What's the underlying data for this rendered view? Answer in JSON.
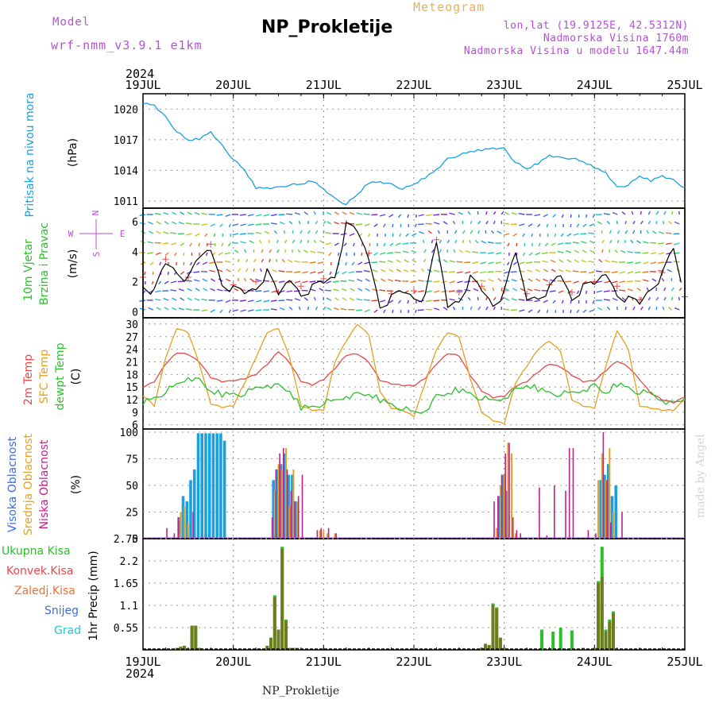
{
  "header": {
    "model_label": "Model",
    "model_name": "wrf-nmm_v3.9.1 e1km",
    "title": "NP_Prokletije",
    "subtitle": "Meteogram",
    "coords": "lon,lat (19.9125E, 42.5312N)",
    "elevation": "Nadmorska Visina 1760m",
    "elevation_model": "Nadmorska Visina u modelu 1647.44m",
    "footer": "NP_Prokletije",
    "credit": "made by Angel"
  },
  "colors": {
    "purple": "#b44fd8",
    "pressure": "#1a9fe0",
    "red": "#e84848",
    "orange": "#e6a020",
    "green": "#2bc02b",
    "blue": "#3a6ee0",
    "magenta": "#c0208a",
    "olive": "#6b7e1c",
    "cyan": "#23c8c8"
  },
  "time_axis": {
    "year": "2024",
    "days": [
      "19JUL",
      "20JUL",
      "21JUL",
      "22JUL",
      "23JUL",
      "24JUL",
      "25JUL"
    ]
  },
  "chart_data": [
    {
      "type": "line",
      "panel": "pressure",
      "ylabel_lines": [
        "Pritisak na nivou mora",
        "(hPa)"
      ],
      "unit": "hPa",
      "y_ticks": [
        "1011",
        "1014",
        "1017",
        "1020"
      ],
      "ylim": [
        1010.3,
        1021.5
      ],
      "x_hours": [
        0,
        3,
        6,
        9,
        12,
        15,
        18,
        21,
        24,
        27,
        30,
        33,
        36,
        39,
        42,
        45,
        48,
        51,
        54,
        57,
        60,
        63,
        66,
        69,
        72,
        75,
        78,
        81,
        84,
        87,
        90,
        93,
        96,
        99,
        102,
        105,
        108,
        111,
        114,
        117,
        120,
        123,
        126,
        129,
        132,
        135,
        138,
        141,
        144
      ],
      "values": [
        1020.6,
        1020.4,
        1019.2,
        1017.8,
        1016.9,
        1017.1,
        1017.8,
        1016.4,
        1015.1,
        1014.0,
        1012.3,
        1012.3,
        1012.3,
        1012.6,
        1012.6,
        1013.0,
        1012.2,
        1011.2,
        1010.7,
        1011.6,
        1012.8,
        1012.9,
        1012.6,
        1012.2,
        1012.6,
        1013.3,
        1014.1,
        1015.1,
        1015.5,
        1015.8,
        1016.0,
        1016.2,
        1016.1,
        1014.8,
        1014.1,
        1014.7,
        1015.5,
        1015.2,
        1015.2,
        1014.8,
        1014.3,
        1013.8,
        1012.3,
        1012.6,
        1013.4,
        1013.0,
        1013.5,
        1013.0,
        1012.3
      ],
      "series": [
        {
          "name": "",
          "color": "#1a9fe0"
        }
      ]
    },
    {
      "type": "line",
      "panel": "wind",
      "ylabel_lines": [
        "10m Vjetar",
        "Brzina i Pravac",
        "(m/s)"
      ],
      "compass": {
        "n": "N",
        "s": "S",
        "e": "E",
        "w": "W"
      },
      "y_ticks": [
        "0",
        "2",
        "4",
        "6"
      ],
      "ylim": [
        -0.4,
        6.9
      ],
      "x_hours": [
        0,
        3,
        6,
        9,
        12,
        15,
        18,
        21,
        24,
        27,
        30,
        33,
        36,
        39,
        42,
        45,
        48,
        51,
        54,
        57,
        60,
        63,
        66,
        69,
        72,
        75,
        78,
        81,
        84,
        87,
        90,
        93,
        96,
        99,
        102,
        105,
        108,
        111,
        114,
        117,
        120,
        123,
        126,
        129,
        132,
        135,
        138,
        141,
        144
      ],
      "values": [
        2.0,
        1.3,
        3.2,
        2.8,
        2.0,
        3.5,
        4.2,
        2.1,
        1.5,
        1.2,
        1.7,
        2.5,
        1.0,
        2.2,
        1.4,
        1.6,
        1.9,
        2.5,
        5.6,
        5.2,
        3.6,
        0.6,
        0.9,
        1.3,
        1.1,
        0.8,
        4.5,
        0.4,
        1.0,
        2.2,
        1.4,
        0.6,
        1.1,
        3.8,
        0.9,
        1.2,
        1.5,
        2.4,
        1.0,
        1.5,
        1.7,
        2.6,
        1.4,
        0.8,
        0.5,
        1.7,
        2.3,
        4.1,
        0.7
      ],
      "series": [
        {
          "name": "",
          "color": "#000000"
        }
      ]
    },
    {
      "type": "line",
      "panel": "temperature",
      "ylabel_lines": [
        "2m Temp",
        "SFC Temp",
        "dewpt Temp",
        "(C)"
      ],
      "y_ticks": [
        "6",
        "9",
        "12",
        "15",
        "18",
        "21",
        "24",
        "27",
        "30"
      ],
      "ylim": [
        5,
        31.5
      ],
      "x_hours": [
        0,
        3,
        6,
        9,
        12,
        15,
        18,
        21,
        24,
        27,
        30,
        33,
        36,
        39,
        42,
        45,
        48,
        51,
        54,
        57,
        60,
        63,
        66,
        69,
        72,
        75,
        78,
        81,
        84,
        87,
        90,
        93,
        96,
        99,
        102,
        105,
        108,
        111,
        114,
        117,
        120,
        123,
        126,
        129,
        132,
        135,
        138,
        141,
        144
      ],
      "series": [
        {
          "name": "2m Temp",
          "color": "#e84848",
          "values": [
            15.0,
            16.3,
            20.5,
            23.2,
            22.8,
            21.0,
            17.3,
            16.3,
            16.5,
            17.0,
            18.0,
            20.4,
            23.5,
            20.8,
            16.4,
            15.5,
            16.8,
            19.4,
            22.6,
            22.9,
            21.0,
            16.6,
            15.8,
            15.4,
            15.3,
            17.1,
            20.5,
            23.0,
            22.5,
            17.8,
            14.1,
            12.5,
            12.8,
            15.2,
            16.3,
            18.6,
            20.5,
            19.8,
            17.8,
            16.3,
            16.5,
            18.9,
            21.2,
            19.8,
            16.8,
            13.5,
            12.0,
            11.3,
            12.6
          ]
        },
        {
          "name": "SFC Temp",
          "color": "#e6a020",
          "values": [
            13.0,
            10.5,
            22.0,
            29.0,
            28.0,
            20.5,
            11.0,
            10.2,
            10.5,
            16.0,
            22.0,
            28.0,
            29.0,
            22.0,
            10.5,
            9.5,
            9.5,
            21.0,
            26.0,
            30.0,
            27.5,
            14.0,
            10.0,
            9.5,
            8.0,
            16.0,
            24.0,
            28.0,
            27.0,
            17.0,
            9.0,
            7.0,
            6.3,
            16.0,
            20.0,
            24.0,
            26.0,
            23.5,
            12.0,
            10.5,
            10.0,
            20.0,
            28.5,
            24.0,
            10.5,
            10.0,
            9.5,
            9.5,
            12.0
          ]
        },
        {
          "name": "dewpt Temp",
          "color": "#2bc02b",
          "values": [
            11.5,
            12.3,
            14.0,
            15.3,
            17.5,
            16.3,
            14.0,
            13.3,
            13.3,
            13.5,
            14.5,
            15.7,
            15.0,
            14.0,
            10.2,
            10.2,
            11.3,
            11.5,
            13.0,
            13.0,
            13.3,
            12.0,
            10.8,
            10.0,
            8.7,
            9.5,
            12.5,
            13.5,
            14.4,
            13.4,
            12.4,
            11.5,
            12.6,
            14.0,
            15.4,
            14.6,
            13.6,
            13.4,
            13.4,
            14.5,
            15.1,
            13.5,
            15.8,
            14.8,
            13.8,
            13.3,
            12.0,
            10.8,
            12.3
          ]
        }
      ]
    },
    {
      "type": "bar",
      "panel": "clouds",
      "ylabel_lines": [
        "Visoka Oblacnost",
        "Srednja Oblacnost",
        "Niska Oblacnost",
        "(%)"
      ],
      "y_ticks": [
        "0",
        "25",
        "50",
        "75",
        "100"
      ],
      "ylim": [
        0,
        103
      ],
      "series": [
        {
          "name": "Visoka Oblacnost",
          "color": "#1a9fe0",
          "x_hours": [
            10,
            11,
            12,
            13,
            14,
            15,
            16,
            17,
            18,
            19,
            20,
            21,
            22,
            23,
            24,
            35,
            36,
            37,
            38,
            39,
            40,
            41,
            95,
            96,
            97,
            121,
            122,
            123,
            124,
            125,
            126
          ],
          "values": [
            20,
            40,
            35,
            55,
            65,
            99,
            99,
            99,
            99,
            99,
            99,
            99,
            92,
            0,
            0,
            55,
            65,
            70,
            80,
            60,
            60,
            35,
            40,
            60,
            45,
            0,
            55,
            60,
            70,
            40,
            50
          ]
        },
        {
          "name": "Srednja Oblacnost",
          "color": "#e6a020",
          "x_hours": [
            10,
            11,
            12,
            35,
            36,
            37,
            38,
            39,
            40,
            41,
            47,
            48,
            49,
            51,
            94,
            95,
            96,
            97,
            98,
            99,
            121,
            122,
            123,
            124,
            125
          ],
          "values": [
            25,
            30,
            15,
            45,
            70,
            65,
            85,
            30,
            65,
            35,
            8,
            8,
            5,
            5,
            10,
            50,
            60,
            90,
            80,
            5,
            55,
            80,
            55,
            85,
            25
          ]
        },
        {
          "name": "Niska Oblacnost",
          "color": "#c0208a",
          "x_hours": [
            6,
            8,
            9,
            13,
            34,
            35,
            36,
            37,
            38,
            39,
            40,
            41,
            42,
            46,
            47,
            49,
            51,
            93,
            94,
            95,
            96,
            97,
            98,
            99,
            100,
            105,
            107,
            109,
            112,
            113,
            114,
            118,
            120,
            122,
            123,
            124,
            127
          ],
          "values": [
            10,
            5,
            20,
            25,
            20,
            65,
            80,
            85,
            65,
            45,
            35,
            40,
            60,
            8,
            10,
            10,
            5,
            35,
            40,
            60,
            80,
            90,
            20,
            8,
            5,
            48,
            3,
            50,
            45,
            85,
            85,
            8,
            5,
            100,
            55,
            15,
            25
          ]
        }
      ]
    },
    {
      "type": "bar",
      "panel": "precipitation",
      "ylabel_lines": [
        "1hr Precip (mm)"
      ],
      "legend": [
        "Ukupna Kisa",
        "Konvek.Kisa",
        "Zaledj.Kisa",
        "Snijeg",
        "Grad"
      ],
      "y_ticks": [
        "0.55",
        "1.1",
        "1.65",
        "2.2",
        "2.75"
      ],
      "ylim": [
        0,
        2.75
      ],
      "x_hours": [
        7,
        9,
        10,
        11,
        12,
        13,
        14,
        15,
        16,
        33,
        34,
        35,
        36,
        37,
        38,
        39,
        40,
        41,
        90,
        91,
        92,
        93,
        94,
        95,
        96,
        106,
        109,
        111,
        114,
        117,
        120,
        121,
        122,
        123,
        124,
        125,
        126
      ],
      "series": [
        {
          "name": "Ukupna Kisa",
          "color": "#2bc02b",
          "values": [
            0.02,
            0.05,
            0.08,
            0.1,
            0.03,
            0.6,
            0.6,
            0.05,
            0.02,
            0.1,
            0.3,
            1.35,
            0.5,
            2.55,
            0.75,
            0.05,
            0.05,
            0.05,
            0.05,
            0.15,
            0.12,
            1.15,
            1.05,
            0.3,
            0.05,
            0.5,
            0.45,
            0.55,
            0.48,
            0.05,
            0.05,
            1.7,
            2.55,
            0.5,
            0.75,
            0.95,
            0.02
          ]
        },
        {
          "name": "Konvek.Kisa",
          "color": "#e84848",
          "values": [
            0.02,
            0.05,
            0.08,
            0.1,
            0.03,
            0.6,
            0.6,
            0.05,
            0.02,
            0.1,
            0.3,
            1.3,
            0.5,
            2.5,
            0.72,
            0.05,
            0.05,
            0.05,
            0.05,
            0.15,
            0.12,
            1.12,
            1.02,
            0.3,
            0.05,
            0.0,
            0.0,
            0.0,
            0.0,
            0.05,
            0.05,
            1.65,
            1.8,
            0.45,
            0.7,
            0.9,
            0.02
          ]
        }
      ]
    }
  ]
}
